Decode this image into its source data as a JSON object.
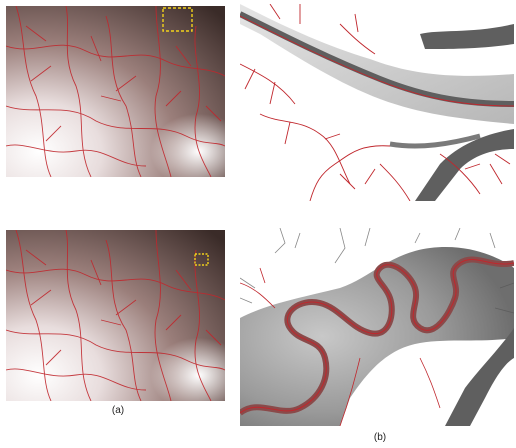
{
  "figure": {
    "caption_a": "(a)",
    "caption_b": "(b)"
  },
  "colors": {
    "river_network": "#c0272d",
    "highlight_box": "#f2d21b",
    "dem_dark": "#4a3a36",
    "dem_light": "#f4f2f2",
    "water_body": "#5f5f5f"
  },
  "panels": [
    {
      "id": "dem-top",
      "content": "dem-with-extracted-rivers",
      "highlight": "large-box"
    },
    {
      "id": "detail-top",
      "content": "zoomed-river-network"
    },
    {
      "id": "dem-bottom",
      "content": "dem-with-extracted-rivers",
      "highlight": "small-box"
    },
    {
      "id": "detail-bottom",
      "content": "zoomed-meandering-river"
    }
  ]
}
